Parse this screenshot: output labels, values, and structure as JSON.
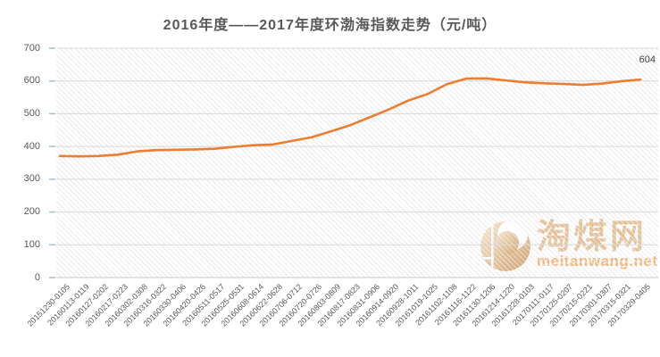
{
  "title": "2016年度——2017年度环渤海指数走势（元/吨）",
  "chart_data": {
    "type": "line",
    "title": "2016年度——2017年度环渤海指数走势（元/吨）",
    "xlabel": "",
    "ylabel": "",
    "ylim": [
      0,
      700
    ],
    "y_ticks": [
      0,
      100,
      200,
      300,
      400,
      500,
      600,
      700
    ],
    "grid": "horizontal",
    "legend_position": "none",
    "categories": [
      "20151230-0105",
      "20160113-0119",
      "20160127-0202",
      "20160217-0223",
      "20160302-0308",
      "20160316-0322",
      "20160330-0406",
      "20160420-0426",
      "20160511-0517",
      "20160525-0531",
      "20160608-0614",
      "20160622-0628",
      "20160706-0712",
      "20160720-0726",
      "20160803-0809",
      "20160817-0823",
      "20160831-0906",
      "20160914-0920",
      "20160928-1011",
      "20161019-1025",
      "20161102-1108",
      "20161116-1122",
      "20161130-1206",
      "20161214-1220",
      "20161228-0103",
      "20170111-0117",
      "20170125-0207",
      "20170215-0221",
      "20170301-0307",
      "20170315-0321",
      "20170329-0405"
    ],
    "series": [
      {
        "name": "环渤海指数",
        "values": [
          371,
          370,
          371,
          375,
          385,
          389,
          390,
          391,
          393,
          399,
          404,
          406,
          417,
          428,
          446,
          465,
          489,
          513,
          540,
          560,
          590,
          607,
          608,
          602,
          596,
          593,
          591,
          588,
          592,
          599,
          604
        ]
      }
    ],
    "last_point_label": "604"
  },
  "watermark": {
    "site_name": "淘煤网",
    "site_url": "meitanwang.net"
  },
  "colors": {
    "line": "#ED7D31",
    "title_text": "#595959",
    "axis_text": "#595959",
    "gridline": "#D9D9D9",
    "axis_line": "#C9C9C9",
    "y_tick_mark": "#A3BED9",
    "data_label": "#3F3F3F",
    "watermark_tan": "#DFB788",
    "watermark_url": "#F2A763"
  }
}
